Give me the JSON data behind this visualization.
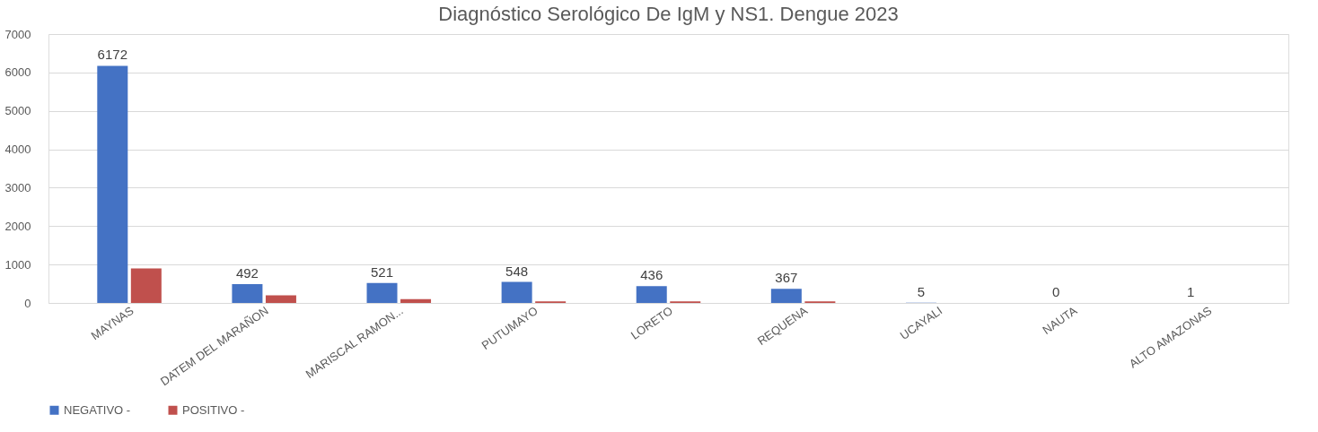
{
  "chart_data": {
    "type": "bar",
    "title": "Diagnóstico Serológico De IgM y NS1. Dengue 2023",
    "categories": [
      "MAYNAS",
      "DATEM DEL MARAÑON",
      "MARISCAL RAMON...",
      "PUTUMAYO",
      "LORETO",
      "REQUENA",
      "UCAYALI",
      "NAUTA",
      "ALTO AMAZONAS"
    ],
    "series": [
      {
        "name": "NEGATIVO -",
        "color": "#4472c4",
        "values": [
          6172,
          492,
          521,
          548,
          436,
          367,
          5,
          0,
          1
        ],
        "value_labels": [
          "6172",
          "492",
          "521",
          "548",
          "436",
          "367",
          "5",
          "0",
          "1"
        ]
      },
      {
        "name": "POSITIVO -",
        "color": "#c0504d",
        "values": [
          900,
          200,
          100,
          40,
          40,
          40,
          0,
          0,
          0
        ]
      }
    ],
    "ylim": [
      0,
      7000
    ],
    "yticks": [
      0,
      1000,
      2000,
      3000,
      4000,
      5000,
      6000,
      7000
    ],
    "grid": "y",
    "legend": "bottom"
  }
}
